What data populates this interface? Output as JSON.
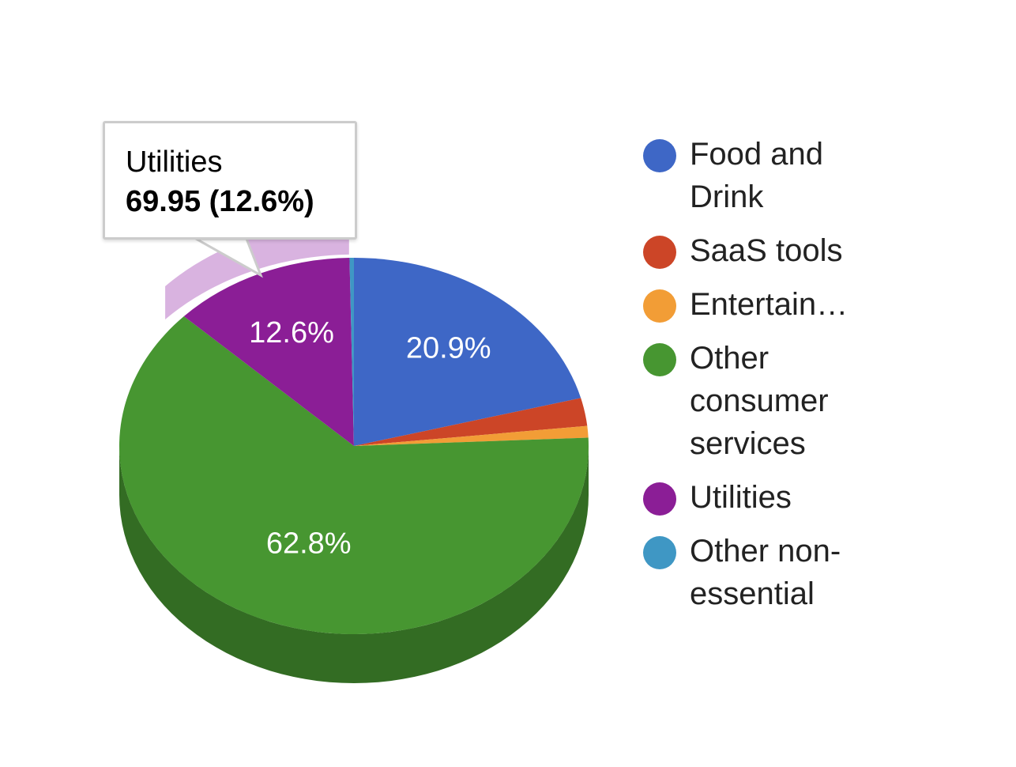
{
  "chart_data": {
    "type": "pie",
    "style": "3d",
    "slices": [
      {
        "name": "Food and Drink",
        "value": 20.9,
        "label": "20.9%",
        "color": "#3e67c6"
      },
      {
        "name": "SaaS tools",
        "value": 2.4,
        "label": "",
        "color": "#cc4527"
      },
      {
        "name": "Entertain…",
        "value": 1.0,
        "label": "",
        "color": "#f29d36"
      },
      {
        "name": "Other consumer services",
        "value": 62.8,
        "label": "62.8%",
        "color": "#479631"
      },
      {
        "name": "Utilities",
        "value": 12.6,
        "label": "12.6%",
        "color": "#8b1e96"
      },
      {
        "name": "Other non-essential",
        "value": 0.3,
        "label": "",
        "color": "#3f97c4"
      }
    ],
    "legend_position": "right",
    "highlighted": "Utilities"
  },
  "legend": {
    "items": [
      {
        "label": "Food and Drink",
        "color": "#3e67c6"
      },
      {
        "label": "SaaS tools",
        "color": "#cc4527"
      },
      {
        "label": "Entertain…",
        "color": "#f29d36"
      },
      {
        "label": "Other consumer services",
        "color": "#479631"
      },
      {
        "label": "Utilities",
        "color": "#8b1e96"
      },
      {
        "label": "Other non-essential",
        "color": "#3f97c4"
      }
    ]
  },
  "tooltip": {
    "title": "Utilities",
    "value": "69.95 (12.6%)"
  }
}
